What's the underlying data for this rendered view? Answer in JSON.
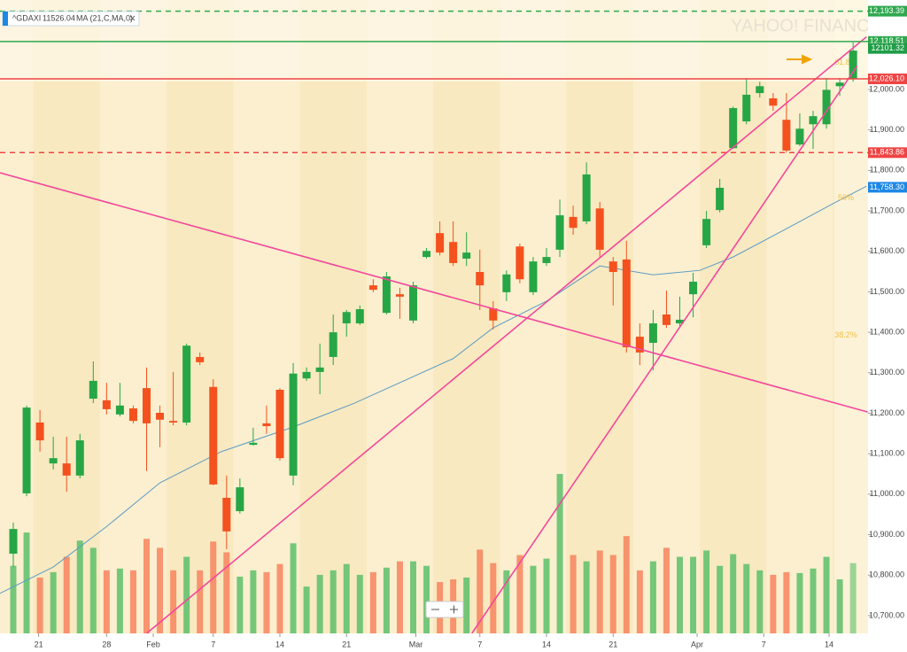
{
  "chart_data": {
    "type": "candlestick",
    "symbol": "^GDAXI",
    "symbol_value": "11526.04",
    "watermark": "YAHOO! FINANCE",
    "up_color": "#26a645",
    "down_color": "#f4511e",
    "open": [
      10853,
      11002,
      11177,
      11076,
      11076,
      11046,
      11236,
      11232,
      11197,
      11212,
      11262,
      11201,
      11181,
      11177,
      11339,
      11265,
      10991,
      10958,
      11122,
      11175,
      11258,
      11046,
      11286,
      11302,
      11339,
      11422,
      11422,
      11516,
      11448,
      11494,
      11429,
      11586,
      11645,
      11623,
      11582,
      11549,
      11459,
      11499,
      11612,
      11499,
      11571,
      11604,
      11685,
      11674,
      11706,
      11575,
      11580,
      11389,
      11374,
      11444,
      11422,
      11494,
      11615,
      11702,
      11855,
      11921,
      11991,
      11978,
      11925,
      11864,
      11914,
      11914,
      12008,
      12026
    ],
    "high": [
      10930,
      11219,
      11208,
      11142,
      11142,
      11149,
      11328,
      11275,
      11275,
      11219,
      11313,
      11219,
      11302,
      11372,
      11350,
      11284,
      11046,
      11039,
      11164,
      11219,
      11262,
      11324,
      11313,
      11372,
      11444,
      11455,
      11466,
      11531,
      11549,
      11510,
      11525,
      11608,
      11674,
      11674,
      11647,
      11604,
      11477,
      11553,
      11619,
      11586,
      11608,
      11728,
      11713,
      11820,
      11722,
      11586,
      11626,
      11422,
      11455,
      11503,
      11488,
      11547,
      11700,
      11779,
      11958,
      12028,
      12019,
      11991,
      11991,
      11941,
      11947,
      12028,
      12028,
      12116
    ],
    "low": [
      10820,
      10995,
      11105,
      11061,
      11006,
      11039,
      11225,
      11197,
      11192,
      11175,
      11057,
      11116,
      11170,
      11170,
      11319,
      11022,
      10864,
      10952,
      11120,
      11149,
      11083,
      11022,
      11280,
      11247,
      11319,
      11389,
      11418,
      11499,
      11444,
      11433,
      11422,
      11582,
      11590,
      11564,
      11564,
      11455,
      11407,
      11477,
      11521,
      11492,
      11564,
      11586,
      11641,
      11667,
      11586,
      11466,
      11350,
      11319,
      11306,
      11411,
      11415,
      11437,
      11608,
      11696,
      11853,
      11914,
      11980,
      11947,
      11844,
      11860,
      11853,
      11903,
      11984,
      12019
    ],
    "close": [
      10914,
      11214,
      11133,
      11089,
      11046,
      11133,
      11280,
      11210,
      11219,
      11181,
      11175,
      11184,
      11177,
      11367,
      11326,
      11024,
      10908,
      11017,
      11127,
      11168,
      11089,
      11298,
      11302,
      11313,
      11400,
      11450,
      11457,
      11505,
      11538,
      11488,
      11516,
      11601,
      11597,
      11571,
      11597,
      11516,
      11429,
      11543,
      11531,
      11575,
      11586,
      11689,
      11658,
      11790,
      11604,
      11549,
      11363,
      11350,
      11422,
      11418,
      11431,
      11525,
      11680,
      11757,
      11954,
      11987,
      12008,
      11960,
      11849,
      11903,
      11934,
      11999,
      12017,
      12096
    ],
    "volume": [
      75,
      112,
      62,
      68,
      85,
      103,
      95,
      70,
      72,
      70,
      105,
      95,
      70,
      85,
      70,
      102,
      90,
      63,
      70,
      68,
      77,
      100,
      52,
      65,
      70,
      77,
      65,
      68,
      73,
      80,
      80,
      75,
      57,
      60,
      62,
      93,
      78,
      70,
      87,
      75,
      83,
      177,
      87,
      80,
      92,
      87,
      108,
      70,
      80,
      95,
      85,
      85,
      92,
      75,
      88,
      77,
      70,
      65,
      68,
      67,
      72,
      85,
      60,
      78
    ],
    "ma": {
      "name": "MA (21,C,MA,0)",
      "color": "#5b9bc4",
      "x": [
        -1,
        3,
        7,
        11,
        15.6,
        21,
        25.6,
        33,
        36,
        40,
        44,
        48,
        51.5,
        54,
        57.5,
        61.5,
        64
      ],
      "values": [
        10755,
        10820,
        10920,
        11028,
        11105,
        11166,
        11225,
        11335,
        11411,
        11477,
        11564,
        11542,
        11553,
        11586,
        11647,
        11718,
        11761
      ]
    },
    "ma_last": {
      "value": 11758.3,
      "label": "11,758.30"
    },
    "last_price": 12101.32,
    "levels": [
      {
        "value": 12193.39,
        "label": "12,193.39",
        "color": "#2fa84f",
        "dashed": true
      },
      {
        "value": 12118.51,
        "label": "12,118.51",
        "color": "#2fa84f",
        "dashed": false
      },
      {
        "value": 12026.1,
        "label": "12,026.10",
        "color": "#ef4444",
        "dashed": false
      },
      {
        "value": 11843.86,
        "label": "11,843.86",
        "color": "#ef4444",
        "dashed": true
      }
    ],
    "trendlines": [
      {
        "color": "#f4479c",
        "x": [
          -1,
          64.1
        ],
        "values": [
          11794,
          11203
        ]
      },
      {
        "color": "#f4479c",
        "x": [
          10,
          64
        ],
        "values": [
          10656,
          12130
        ]
      },
      {
        "color": "#f4479c",
        "x": [
          34.4,
          63.3
        ],
        "values": [
          10656,
          12058
        ]
      }
    ],
    "fib": [
      {
        "text": "61.8%",
        "price": 12066
      },
      {
        "text": "50%",
        "price": 11731
      },
      {
        "text": "38.2%",
        "price": 11392
      }
    ],
    "ylim": [
      10656,
      12221
    ],
    "yticks": [
      {
        "value": 10700,
        "label": "10,700.00"
      },
      {
        "value": 10800,
        "label": "10,800.00"
      },
      {
        "value": 10900,
        "label": "10,900.00"
      },
      {
        "value": 11000,
        "label": "11,000.00"
      },
      {
        "value": 11100,
        "label": "11,100.00"
      },
      {
        "value": 11200,
        "label": "11,200.00"
      },
      {
        "value": 11300,
        "label": "11,300.00"
      },
      {
        "value": 11400,
        "label": "11,400.00"
      },
      {
        "value": 11500,
        "label": "11,500.00"
      },
      {
        "value": 11600,
        "label": "11,600.00"
      },
      {
        "value": 11700,
        "label": "11,700.00"
      },
      {
        "value": 11800,
        "label": "11,800.00"
      },
      {
        "value": 11900,
        "label": "11,900.00"
      },
      {
        "value": 12000,
        "label": "12,000.00"
      }
    ],
    "xticks": [
      {
        "value": 1.9,
        "label": "21"
      },
      {
        "value": 7,
        "label": "28"
      },
      {
        "value": 10.5,
        "label": "Feb"
      },
      {
        "value": 15,
        "label": "7"
      },
      {
        "value": 20,
        "label": "14"
      },
      {
        "value": 25,
        "label": "21"
      },
      {
        "value": 30.2,
        "label": "Mar"
      },
      {
        "value": 35,
        "label": "7"
      },
      {
        "value": 40,
        "label": "14"
      },
      {
        "value": 45,
        "label": "21"
      },
      {
        "value": 51.3,
        "label": "Apr"
      },
      {
        "value": 56.3,
        "label": "7"
      },
      {
        "value": 61.2,
        "label": "14"
      }
    ]
  }
}
